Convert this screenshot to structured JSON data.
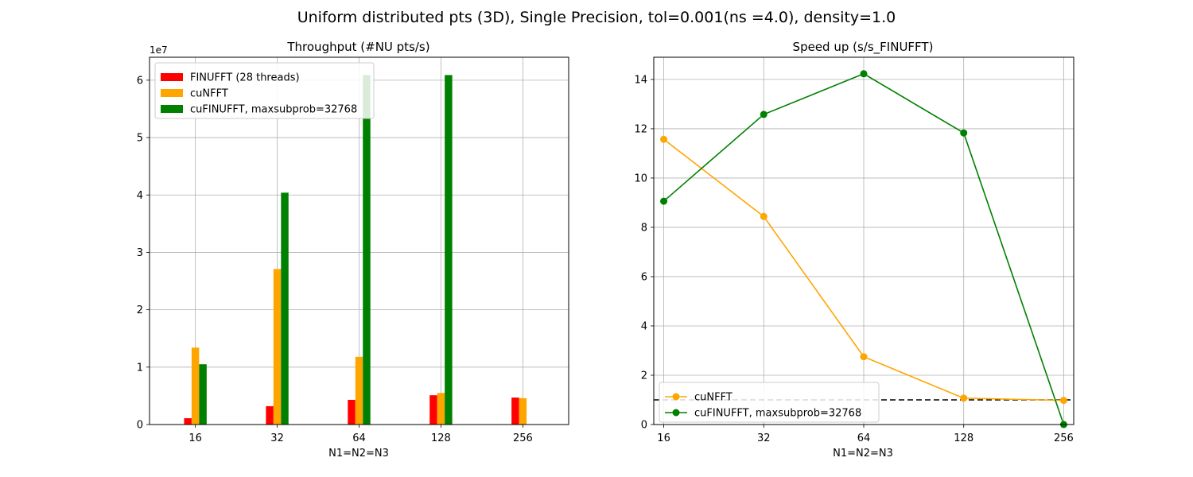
{
  "suptitle": "Uniform distributed pts (3D), Single Precision, tol=0.001(ns =4.0), density=1.0",
  "chart_data": [
    {
      "type": "bar",
      "title": "Throughput (#NU pts/s)",
      "xlabel": "N1=N2=N3",
      "ylabel": "",
      "y_offset_label": "1e7",
      "categories": [
        "16",
        "32",
        "64",
        "128",
        "256"
      ],
      "yticks": [
        0,
        1,
        2,
        3,
        4,
        5,
        6
      ],
      "ytick_labels": [
        "0",
        "1",
        "2",
        "3",
        "4",
        "5",
        "6"
      ],
      "ylim": [
        0,
        6.4
      ],
      "grid": true,
      "legend": "upper-left",
      "series": [
        {
          "name": "FINUFFT (28 threads)",
          "color": "#ff0000",
          "values": [
            0.11,
            0.32,
            0.43,
            0.51,
            0.47
          ]
        },
        {
          "name": "cuNFFT",
          "color": "#ffa500",
          "values": [
            1.34,
            2.71,
            1.18,
            0.55,
            0.46
          ]
        },
        {
          "name": "cuFINUFFT, maxsubprob=32768",
          "color": "#008000",
          "values": [
            1.05,
            4.04,
            6.09,
            6.09,
            0
          ]
        }
      ]
    },
    {
      "type": "line",
      "title": "Speed up (s/s_FINUFFT)",
      "xlabel": "N1=N2=N3",
      "ylabel": "",
      "categories": [
        "16",
        "32",
        "64",
        "128",
        "256"
      ],
      "yticks": [
        0,
        2,
        4,
        6,
        8,
        10,
        12,
        14
      ],
      "ytick_labels": [
        "0",
        "2",
        "4",
        "6",
        "8",
        "10",
        "12",
        "14"
      ],
      "ylim": [
        0,
        14.9
      ],
      "grid": true,
      "legend": "lower-left",
      "reference_line": 1.0,
      "series": [
        {
          "name": "cuNFFT",
          "color": "#ffa500",
          "values": [
            11.57,
            8.44,
            2.75,
            1.07,
            0.98
          ]
        },
        {
          "name": "cuFINUFFT, maxsubprob=32768",
          "color": "#008000",
          "values": [
            9.06,
            12.58,
            14.23,
            11.83,
            0
          ]
        }
      ]
    }
  ]
}
